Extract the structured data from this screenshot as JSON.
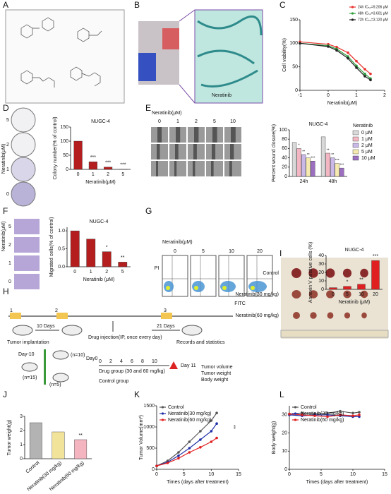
{
  "panel_labels": [
    "A",
    "B",
    "C",
    "D",
    "E",
    "F",
    "G",
    "H",
    "I",
    "J",
    "K",
    "L"
  ],
  "panel_b": {
    "label": "Neratinib"
  },
  "panel_d": {
    "dish_labels": [
      "5",
      "2",
      "1",
      "0"
    ],
    "axis_label": "Neratinib(μM)"
  },
  "panel_e": {
    "title": "Neratinib(μM)",
    "columns": [
      "0",
      "1",
      "2",
      "5",
      "10"
    ]
  },
  "panel_f": {
    "image_labels": [
      "5",
      "2",
      "1",
      "0"
    ],
    "axis_label": "Neratinib(μM)"
  },
  "panel_g": {
    "title": "Neratinib(μM)",
    "columns": [
      "0",
      "5",
      "10",
      "20"
    ],
    "y_label": "PI",
    "x_label": "FITC"
  },
  "panel_h": {
    "markers": [
      "1",
      "2",
      "3"
    ],
    "implant": "Tumor implantation",
    "days1": "10 Days",
    "injection": "Drug injection(IP, once every day)",
    "days2": "21 Days",
    "records": "Records and statistics",
    "day_minus": "Day-10",
    "n15": "(n=15)",
    "n10": "(n=10)",
    "n5": "(n=5)",
    "day0": "Day0",
    "drug_group": "Drug group (30 and 60 mg/kg)",
    "control_group": "Control group",
    "days": [
      "0",
      "2",
      "4",
      "6",
      "8",
      "10"
    ],
    "day11": "Day 11",
    "outcomes": [
      "Tumor volume",
      "Tumor weight",
      "Body weight"
    ]
  },
  "panel_i": {
    "rows": [
      "Control",
      "Neratinib(30 mg/kg)",
      "Neratinib(60 mg/kg)"
    ]
  },
  "chart_data": [
    {
      "type": "line",
      "x_label": "Neratinib(μM)",
      "y_label": "Cell viability(%)",
      "x": [
        -1,
        0,
        0.3,
        0.7,
        1,
        1.3,
        1.5
      ],
      "xlim": [
        -1,
        2
      ],
      "xticks": [
        -1,
        0,
        1,
        2
      ],
      "ylim": [
        0,
        150
      ],
      "yticks": [
        0,
        50,
        100,
        150
      ],
      "legend": "upper right",
      "series": [
        {
          "name": "24h IC₅₀=9.206 μM",
          "color": "#e8312f",
          "values": [
            103,
            98,
            92,
            80,
            62,
            45,
            35
          ]
        },
        {
          "name": "48h IC₅₀=3.601 μM",
          "color": "#2e9e3e",
          "values": [
            100,
            95,
            88,
            72,
            52,
            35,
            25
          ]
        },
        {
          "name": "72h IC₅₀=3.120 μM",
          "color": "#222222",
          "values": [
            100,
            93,
            85,
            68,
            48,
            30,
            22
          ]
        }
      ]
    },
    {
      "type": "bar",
      "title": "NUGC-4",
      "x_label": "Neratinib(μM)",
      "y_label": "Colony number(% of control)",
      "categories": [
        "0",
        "1",
        "2",
        "5"
      ],
      "values": [
        100,
        27,
        8,
        0.5
      ],
      "color": "#b41e1e",
      "significance": [
        null,
        "***",
        "***",
        "***"
      ],
      "ylim": [
        0,
        150
      ],
      "yticks": [
        0,
        50,
        100,
        150
      ]
    },
    {
      "type": "bar",
      "title": "NUGC-4",
      "y_label": "Percent wound closure(%)",
      "legend_title": "Neratinib",
      "legend": "right",
      "categories": [
        "24h",
        "48h"
      ],
      "ylim": [
        0,
        100
      ],
      "yticks": [
        0,
        20,
        40,
        60,
        80,
        100
      ],
      "series": [
        {
          "name": "0 μM",
          "color": "#d9d9d9",
          "values": [
            73,
            85
          ],
          "significance": [
            null,
            null
          ]
        },
        {
          "name": "1 μM",
          "color": "#f4b6c2",
          "values": [
            60,
            50
          ],
          "significance": [
            "*",
            "**"
          ]
        },
        {
          "name": "2 μM",
          "color": "#c9b8e8",
          "values": [
            47,
            40
          ],
          "significance": [
            "**",
            "**"
          ]
        },
        {
          "name": "5 μM",
          "color": "#f7eab0",
          "values": [
            40,
            28
          ],
          "significance": [
            "**",
            "***"
          ]
        },
        {
          "name": "10 μM",
          "color": "#9c6fc0",
          "values": [
            33,
            18
          ],
          "significance": [
            "***",
            "***"
          ]
        }
      ]
    },
    {
      "type": "bar",
      "title": "NUGC-4",
      "x_label": "Neratinib (μM)",
      "y_label": "Migrated cells(% of control)",
      "categories": [
        "0",
        "1",
        "2",
        "5"
      ],
      "values": [
        1.0,
        0.77,
        0.42,
        0.13
      ],
      "color": "#b41e1e",
      "significance": [
        null,
        null,
        "*",
        "**"
      ],
      "ylim": [
        0,
        1.1
      ],
      "yticks": [
        {
          "value": 0,
          "label": "0.0"
        },
        {
          "value": 0.5,
          "label": "0.5"
        },
        {
          "value": 1,
          "label": "1.0"
        }
      ]
    },
    {
      "type": "bar",
      "title": "NUGC-4",
      "x_label": "Neratinib (μM)",
      "y_label": "Annexin V positive cells (%)",
      "categories": [
        "0",
        "5",
        "10",
        "20"
      ],
      "values": [
        2,
        3.5,
        6,
        34
      ],
      "color": "#e02020",
      "significance": [
        null,
        "*",
        "**",
        "***"
      ],
      "ylim": [
        0,
        40
      ],
      "yticks": [
        0,
        10,
        20,
        30,
        40
      ]
    },
    {
      "type": "bar",
      "y_label": "Tumor weight(g)",
      "categories": [
        "Control",
        "Neratinib(30 mg/kg)",
        "Neratinib(60 mg/kg)"
      ],
      "values": [
        2.55,
        1.9,
        1.35
      ],
      "colors": [
        "#b3b3b3",
        "#f2e39b",
        "#f5b5c0"
      ],
      "significance": [
        null,
        null,
        "**"
      ],
      "ylim": [
        0,
        3
      ],
      "yticks": [
        0,
        1,
        2,
        3
      ]
    },
    {
      "type": "line",
      "x_label": "Times (days after treatment)",
      "y_label": "Tumor Volume(mm³)",
      "annotation": "**",
      "legend": "upper left",
      "x": [
        0,
        2,
        4,
        6,
        8,
        10,
        11
      ],
      "xlim": [
        0,
        15
      ],
      "xticks": [
        0,
        5,
        10,
        15
      ],
      "ylim": [
        0,
        1500
      ],
      "yticks": [
        0,
        500,
        1000,
        1500
      ],
      "series": [
        {
          "name": "Control",
          "color": "#555555",
          "values": [
            80,
            200,
            400,
            650,
            900,
            1150,
            1330
          ]
        },
        {
          "name": "Neratinib(30 mg/kg)",
          "color": "#1f2fa8",
          "values": [
            80,
            170,
            320,
            500,
            700,
            900,
            1080
          ]
        },
        {
          "name": "Neratinib(60 mg/kg)",
          "color": "#e02020",
          "values": [
            80,
            150,
            260,
            400,
            520,
            650,
            740
          ]
        }
      ]
    },
    {
      "type": "line",
      "x_label": "Times (days after treatment)",
      "y_label": "Body weight(g)",
      "legend": "upper left",
      "x": [
        0,
        2,
        4,
        6,
        8,
        10,
        11
      ],
      "xlim": [
        0,
        15
      ],
      "xticks": [
        0,
        5,
        10,
        15
      ],
      "ylim": [
        0,
        35
      ],
      "yticks": [
        0,
        10,
        20,
        30
      ],
      "series": [
        {
          "name": "Control",
          "color": "#555555",
          "values": [
            30.5,
            31,
            30.5,
            31,
            32,
            31,
            31.5
          ]
        },
        {
          "name": "Neratinib(30 mg/kg)",
          "color": "#1f2fa8",
          "values": [
            30,
            29.5,
            30,
            30,
            29.5,
            29,
            29
          ]
        },
        {
          "name": "Neratinib(60 mg/kg)",
          "color": "#e02020",
          "values": [
            30.5,
            30,
            29.5,
            29,
            30,
            29.5,
            30
          ]
        }
      ]
    }
  ]
}
